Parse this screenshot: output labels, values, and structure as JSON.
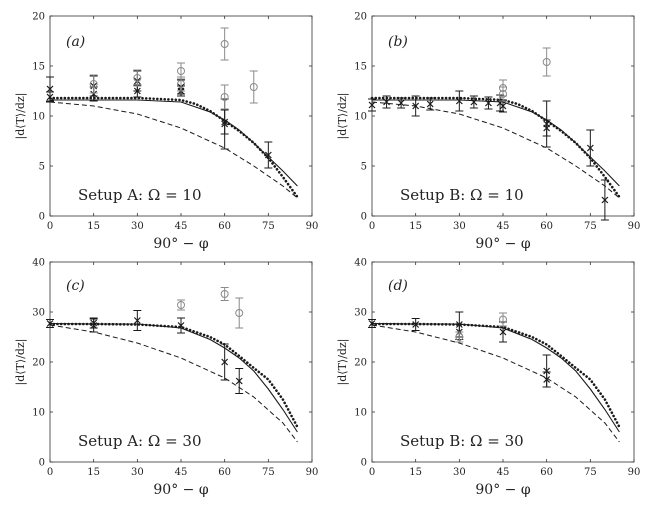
{
  "figure": {
    "xlabel": "90° − φ",
    "ylabel": "|d⟨T⟩/dz|"
  },
  "chart_data": [
    {
      "type": "scatter",
      "panel_label": "(a)",
      "annotation": "Setup A: Ω = 10",
      "xlim": [
        0,
        90
      ],
      "ylim": [
        0,
        20
      ],
      "xticks": [
        0,
        15,
        30,
        45,
        60,
        75,
        90
      ],
      "yticks": [
        0,
        5,
        10,
        15,
        20
      ],
      "curves": [
        {
          "name": "solid",
          "style": "solid",
          "x": [
            0,
            15,
            30,
            45,
            55,
            60,
            65,
            70,
            75,
            80,
            85
          ],
          "y": [
            11.6,
            11.6,
            11.6,
            11.4,
            10.4,
            9.6,
            8.6,
            7.3,
            5.9,
            4.5,
            3.0
          ]
        },
        {
          "name": "dotted",
          "style": "dotted",
          "x": [
            0,
            15,
            30,
            45,
            50,
            55,
            60,
            65,
            70,
            75,
            80,
            85
          ],
          "y": [
            11.8,
            11.8,
            11.8,
            11.6,
            11.2,
            10.5,
            9.5,
            8.5,
            7.3,
            5.8,
            3.9,
            1.9
          ]
        },
        {
          "name": "dashed",
          "style": "dashed",
          "x": [
            0,
            15,
            30,
            45,
            60,
            70,
            80,
            85
          ],
          "y": [
            11.4,
            11.0,
            10.2,
            8.8,
            6.8,
            5.0,
            3.0,
            1.8
          ]
        }
      ],
      "points": [
        {
          "x": 0,
          "y": 12.7,
          "err": 1.2,
          "marker": "x",
          "gray": false
        },
        {
          "x": 0,
          "y": 11.9,
          "err": 0.5,
          "marker": "x",
          "gray": false
        },
        {
          "x": 15,
          "y": 13.0,
          "err": 1.0,
          "marker": "x",
          "gray": false
        },
        {
          "x": 15,
          "y": 12.2,
          "err": 0.7,
          "marker": "x",
          "gray": false
        },
        {
          "x": 15,
          "y": 13.2,
          "err": 0.9,
          "marker": "o",
          "gray": true
        },
        {
          "x": 30,
          "y": 13.5,
          "err": 1.0,
          "marker": "x",
          "gray": false
        },
        {
          "x": 30,
          "y": 12.5,
          "err": 0.6,
          "marker": "x",
          "gray": false
        },
        {
          "x": 30,
          "y": 13.8,
          "err": 0.8,
          "marker": "o",
          "gray": true
        },
        {
          "x": 45,
          "y": 12.9,
          "err": 0.7,
          "marker": "x",
          "gray": false
        },
        {
          "x": 45,
          "y": 12.5,
          "err": 0.5,
          "marker": "x",
          "gray": false
        },
        {
          "x": 45,
          "y": 14.5,
          "err": 0.8,
          "marker": "o",
          "gray": true
        },
        {
          "x": 45,
          "y": 13.2,
          "err": 0.7,
          "marker": "o",
          "gray": true
        },
        {
          "x": 60,
          "y": 9.2,
          "err": 2.5,
          "marker": "x",
          "gray": false
        },
        {
          "x": 60,
          "y": 9.4,
          "err": 1.2,
          "marker": "x",
          "gray": false
        },
        {
          "x": 60,
          "y": 17.2,
          "err": 1.6,
          "marker": "o",
          "gray": true
        },
        {
          "x": 60,
          "y": 11.9,
          "err": 1.2,
          "marker": "o",
          "gray": true
        },
        {
          "x": 70,
          "y": 12.9,
          "err": 1.6,
          "marker": "o",
          "gray": true
        },
        {
          "x": 75,
          "y": 6.1,
          "err": 1.3,
          "marker": "x",
          "gray": false
        }
      ]
    },
    {
      "type": "scatter",
      "panel_label": "(b)",
      "annotation": "Setup B: Ω = 10",
      "xlim": [
        0,
        90
      ],
      "ylim": [
        0,
        20
      ],
      "xticks": [
        0,
        15,
        30,
        45,
        60,
        75,
        90
      ],
      "yticks": [
        0,
        5,
        10,
        15,
        20
      ],
      "curves": [
        {
          "name": "solid",
          "style": "solid",
          "x": [
            0,
            15,
            30,
            45,
            55,
            60,
            65,
            70,
            75,
            80,
            85
          ],
          "y": [
            11.6,
            11.6,
            11.6,
            11.4,
            10.4,
            9.6,
            8.6,
            7.3,
            5.9,
            4.5,
            3.0
          ]
        },
        {
          "name": "dotted",
          "style": "dotted",
          "x": [
            0,
            15,
            30,
            45,
            50,
            55,
            60,
            65,
            70,
            75,
            80,
            85
          ],
          "y": [
            11.8,
            11.8,
            11.8,
            11.6,
            11.2,
            10.5,
            9.5,
            8.5,
            7.3,
            5.8,
            3.9,
            1.9
          ]
        },
        {
          "name": "dashed",
          "style": "dashed",
          "x": [
            0,
            15,
            30,
            45,
            60,
            70,
            80,
            85
          ],
          "y": [
            11.4,
            11.0,
            10.2,
            8.8,
            6.8,
            5.0,
            3.0,
            1.8
          ]
        }
      ],
      "points": [
        {
          "x": 0,
          "y": 11.1,
          "err": 0.6,
          "marker": "x",
          "gray": false
        },
        {
          "x": 5,
          "y": 11.4,
          "err": 0.6,
          "marker": "x",
          "gray": false
        },
        {
          "x": 10,
          "y": 11.3,
          "err": 0.5,
          "marker": "x",
          "gray": false
        },
        {
          "x": 15,
          "y": 11.0,
          "err": 1.0,
          "marker": "x",
          "gray": false
        },
        {
          "x": 20,
          "y": 11.2,
          "err": 0.6,
          "marker": "x",
          "gray": false
        },
        {
          "x": 30,
          "y": 11.5,
          "err": 1.0,
          "marker": "x",
          "gray": false
        },
        {
          "x": 35,
          "y": 11.4,
          "err": 0.6,
          "marker": "x",
          "gray": false
        },
        {
          "x": 40,
          "y": 11.3,
          "err": 0.6,
          "marker": "x",
          "gray": false
        },
        {
          "x": 44,
          "y": 11.3,
          "err": 0.8,
          "marker": "x",
          "gray": false
        },
        {
          "x": 45,
          "y": 11.0,
          "err": 0.6,
          "marker": "x",
          "gray": false
        },
        {
          "x": 45,
          "y": 12.8,
          "err": 0.8,
          "marker": "o",
          "gray": true
        },
        {
          "x": 45,
          "y": 12.2,
          "err": 0.7,
          "marker": "o",
          "gray": true
        },
        {
          "x": 60,
          "y": 9.2,
          "err": 2.3,
          "marker": "x",
          "gray": false
        },
        {
          "x": 60,
          "y": 8.8,
          "err": 0.8,
          "marker": "x",
          "gray": false
        },
        {
          "x": 60,
          "y": 15.4,
          "err": 1.4,
          "marker": "o",
          "gray": true
        },
        {
          "x": 75,
          "y": 6.8,
          "err": 1.8,
          "marker": "x",
          "gray": false
        },
        {
          "x": 80,
          "y": 1.6,
          "err": 2.0,
          "marker": "x",
          "gray": false
        }
      ]
    },
    {
      "type": "scatter",
      "panel_label": "(c)",
      "annotation": "Setup A: Ω = 30",
      "xlim": [
        0,
        90
      ],
      "ylim": [
        0,
        40
      ],
      "xticks": [
        0,
        15,
        30,
        45,
        60,
        75,
        90
      ],
      "yticks": [
        0,
        10,
        20,
        30,
        40
      ],
      "curves": [
        {
          "name": "solid",
          "style": "solid",
          "x": [
            0,
            15,
            30,
            45,
            55,
            60,
            65,
            70,
            75,
            80,
            85
          ],
          "y": [
            27.7,
            27.6,
            27.6,
            26.8,
            24.5,
            22.8,
            20.8,
            18.2,
            14.6,
            10.5,
            6.0
          ]
        },
        {
          "name": "dotted",
          "style": "dotted",
          "x": [
            0,
            15,
            30,
            45,
            55,
            60,
            65,
            70,
            75,
            80,
            85
          ],
          "y": [
            27.6,
            27.6,
            27.5,
            27.0,
            25.0,
            23.5,
            21.2,
            18.8,
            16.5,
            12.5,
            7.0
          ]
        },
        {
          "name": "dashed",
          "style": "dashed",
          "x": [
            0,
            15,
            30,
            45,
            60,
            70,
            80,
            85
          ],
          "y": [
            27.4,
            26.0,
            23.8,
            20.8,
            16.8,
            13.0,
            7.8,
            4.0
          ]
        }
      ],
      "points": [
        {
          "x": 0,
          "y": 27.7,
          "err": 0.8,
          "marker": "x",
          "gray": false
        },
        {
          "x": 15,
          "y": 27.3,
          "err": 1.3,
          "marker": "x",
          "gray": false
        },
        {
          "x": 15,
          "y": 27.8,
          "err": 1.0,
          "marker": "x",
          "gray": false
        },
        {
          "x": 30,
          "y": 28.3,
          "err": 2.0,
          "marker": "x",
          "gray": false
        },
        {
          "x": 45,
          "y": 27.3,
          "err": 1.5,
          "marker": "x",
          "gray": false
        },
        {
          "x": 45,
          "y": 31.4,
          "err": 1.0,
          "marker": "o",
          "gray": true
        },
        {
          "x": 60,
          "y": 20.0,
          "err": 3.6,
          "marker": "x",
          "gray": false
        },
        {
          "x": 60,
          "y": 33.6,
          "err": 1.3,
          "marker": "o",
          "gray": true
        },
        {
          "x": 65,
          "y": 16.2,
          "err": 2.5,
          "marker": "x",
          "gray": false
        },
        {
          "x": 65,
          "y": 29.8,
          "err": 3.0,
          "marker": "o",
          "gray": true
        }
      ]
    },
    {
      "type": "scatter",
      "panel_label": "(d)",
      "annotation": "Setup B: Ω = 30",
      "xlim": [
        0,
        90
      ],
      "ylim": [
        0,
        40
      ],
      "xticks": [
        0,
        15,
        30,
        45,
        60,
        75,
        90
      ],
      "yticks": [
        0,
        10,
        20,
        30,
        40
      ],
      "curves": [
        {
          "name": "solid",
          "style": "solid",
          "x": [
            0,
            15,
            30,
            45,
            55,
            60,
            65,
            70,
            75,
            80,
            85
          ],
          "y": [
            27.7,
            27.6,
            27.6,
            26.8,
            24.5,
            22.8,
            20.8,
            18.2,
            14.6,
            10.5,
            6.0
          ]
        },
        {
          "name": "dotted",
          "style": "dotted",
          "x": [
            0,
            15,
            30,
            45,
            55,
            60,
            65,
            70,
            75,
            80,
            85
          ],
          "y": [
            27.6,
            27.6,
            27.5,
            27.0,
            25.0,
            23.5,
            21.2,
            18.8,
            16.5,
            12.5,
            7.0
          ]
        },
        {
          "name": "dashed",
          "style": "dashed",
          "x": [
            0,
            15,
            30,
            45,
            60,
            70,
            80,
            85
          ],
          "y": [
            27.4,
            26.0,
            23.8,
            20.8,
            16.8,
            13.0,
            7.8,
            4.0
          ]
        }
      ],
      "points": [
        {
          "x": 0,
          "y": 27.7,
          "err": 0.8,
          "marker": "x",
          "gray": false
        },
        {
          "x": 15,
          "y": 27.5,
          "err": 1.2,
          "marker": "x",
          "gray": false
        },
        {
          "x": 30,
          "y": 27.5,
          "err": 2.5,
          "marker": "x",
          "gray": false
        },
        {
          "x": 30,
          "y": 26.0,
          "err": 1.5,
          "marker": "x",
          "gray": false
        },
        {
          "x": 30,
          "y": 25.0,
          "err": 1.0,
          "marker": "o",
          "gray": true
        },
        {
          "x": 45,
          "y": 26.0,
          "err": 2.0,
          "marker": "x",
          "gray": false
        },
        {
          "x": 45,
          "y": 28.5,
          "err": 1.3,
          "marker": "o",
          "gray": true
        },
        {
          "x": 60,
          "y": 18.2,
          "err": 3.2,
          "marker": "x",
          "gray": false
        },
        {
          "x": 60,
          "y": 16.5,
          "err": 1.5,
          "marker": "x",
          "gray": false
        }
      ]
    }
  ]
}
